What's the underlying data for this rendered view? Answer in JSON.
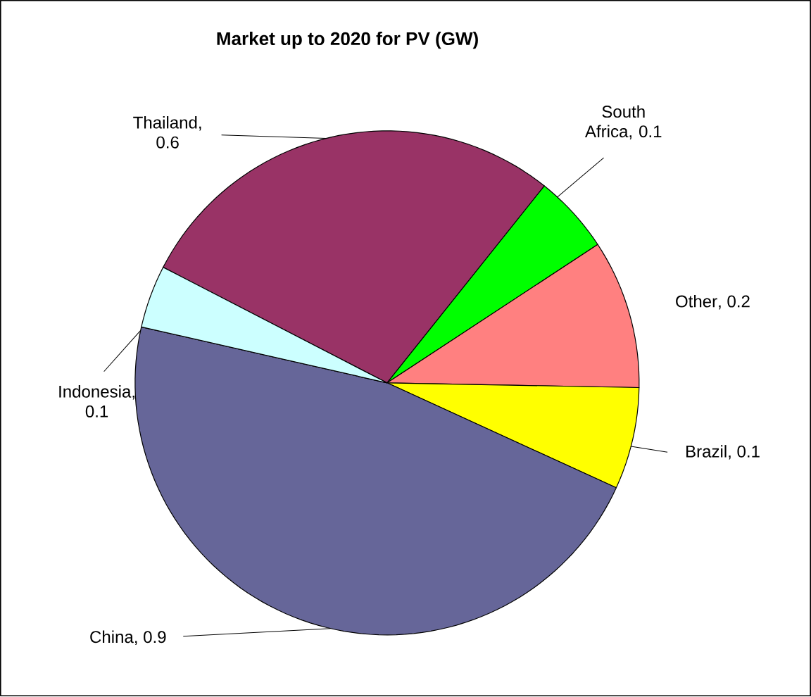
{
  "chart_data": {
    "type": "pie",
    "title": "Market up to 2020 for PV (GW)",
    "categories": [
      "Thailand",
      "South Africa",
      "Other",
      "Brazil",
      "China",
      "Indonesia"
    ],
    "values": [
      0.56,
      0.1,
      0.19,
      0.13,
      0.93,
      0.08
    ],
    "value_labels": [
      ", 0.6",
      ", 0.1",
      ", 0.2",
      ", 0.1",
      ", 0.9",
      ", 0.1"
    ],
    "colors": [
      "#993366",
      "#00ff00",
      "#ff8080",
      "#ffff00",
      "#666699",
      "#ccffff"
    ]
  }
}
